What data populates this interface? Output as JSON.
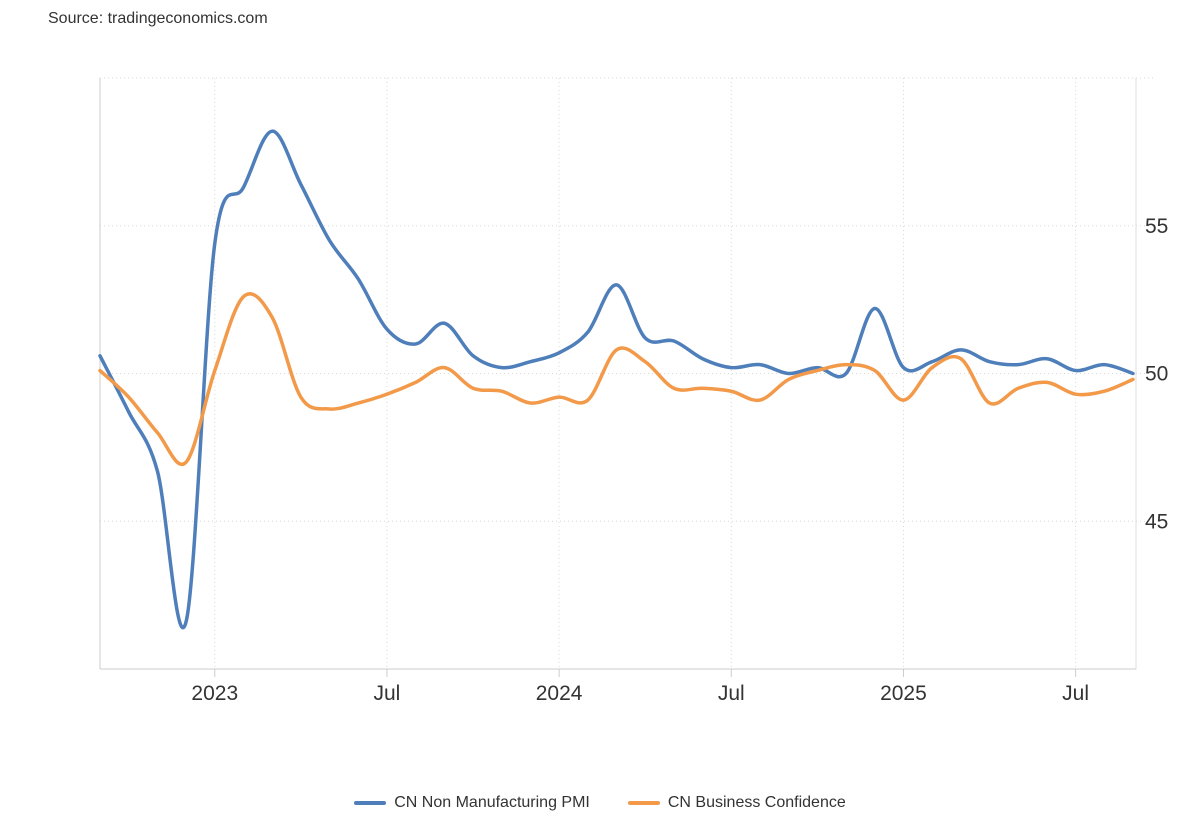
{
  "source": "Source: tradingeconomics.com",
  "chart_data": {
    "type": "line",
    "title": "",
    "xlabel": "",
    "ylabel": "",
    "ylim": [
      40,
      60
    ],
    "y_ticks": [
      45,
      50,
      55
    ],
    "y_axis_position": "right",
    "x_start": "2022-09",
    "x": [
      "2022-09",
      "2022-10",
      "2022-11",
      "2022-12",
      "2023-01",
      "2023-02",
      "2023-03",
      "2023-04",
      "2023-05",
      "2023-06",
      "2023-07",
      "2023-08",
      "2023-09",
      "2023-10",
      "2023-11",
      "2023-12",
      "2024-01",
      "2024-02",
      "2024-03",
      "2024-04",
      "2024-05",
      "2024-06",
      "2024-07",
      "2024-08",
      "2024-09",
      "2024-10",
      "2024-11",
      "2024-12",
      "2025-01",
      "2025-02",
      "2025-03",
      "2025-04",
      "2025-05",
      "2025-06",
      "2025-07",
      "2025-08",
      "2025-09"
    ],
    "x_ticks": [
      {
        "index": 4,
        "label": "2023"
      },
      {
        "index": 10,
        "label": "Jul"
      },
      {
        "index": 16,
        "label": "2024"
      },
      {
        "index": 22,
        "label": "Jul"
      },
      {
        "index": 28,
        "label": "2025"
      },
      {
        "index": 34,
        "label": "Jul"
      }
    ],
    "grid": true,
    "legend_position": "bottom-center",
    "series": [
      {
        "name": "CN Non Manufacturing PMI",
        "color": "#4f7fba",
        "values": [
          50.6,
          48.7,
          46.7,
          41.6,
          54.4,
          56.3,
          58.2,
          56.4,
          54.5,
          53.2,
          51.5,
          51.0,
          51.7,
          50.6,
          50.2,
          50.4,
          50.7,
          51.4,
          53.0,
          51.2,
          51.1,
          50.5,
          50.2,
          50.3,
          50.0,
          50.2,
          50.0,
          52.2,
          50.2,
          50.4,
          50.8,
          50.4,
          50.3,
          50.5,
          50.1,
          50.3,
          50.0
        ]
      },
      {
        "name": "CN Business Confidence",
        "color": "#f2994a",
        "values": [
          50.1,
          49.2,
          48.0,
          47.0,
          50.1,
          52.6,
          51.9,
          49.2,
          48.8,
          49.0,
          49.3,
          49.7,
          50.2,
          49.5,
          49.4,
          49.0,
          49.2,
          49.1,
          50.8,
          50.4,
          49.5,
          49.5,
          49.4,
          49.1,
          49.8,
          50.1,
          50.3,
          50.1,
          49.1,
          50.2,
          50.5,
          49.0,
          49.5,
          49.7,
          49.3,
          49.4,
          49.8
        ]
      }
    ]
  }
}
